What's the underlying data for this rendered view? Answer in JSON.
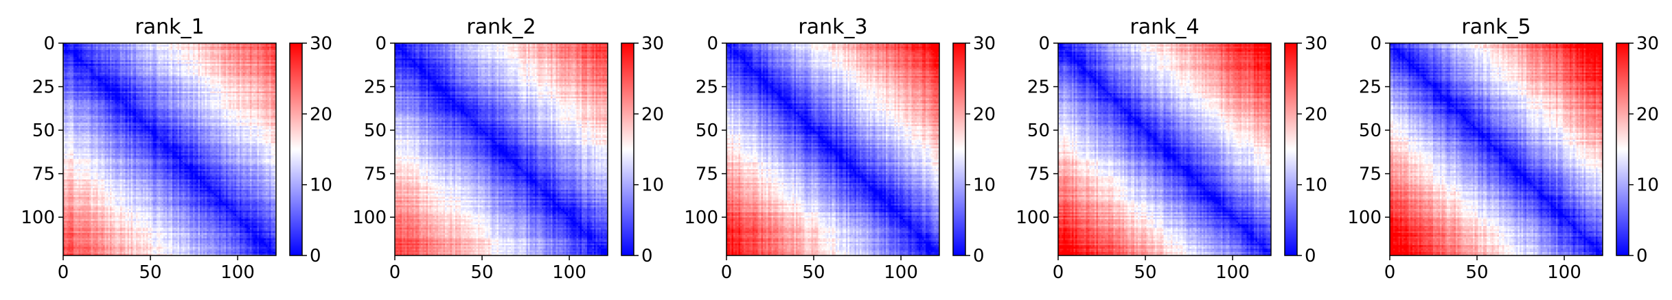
{
  "chart_data": {
    "type": "heatmap",
    "matrix_size": 123,
    "colormap": [
      "#0000ff",
      "#ffffff",
      "#ff0000"
    ],
    "color_range": [
      0,
      30
    ],
    "x_ticks": [
      0,
      50,
      100
    ],
    "y_ticks": [
      0,
      25,
      50,
      75,
      100
    ],
    "colorbar_ticks": [
      0,
      10,
      20,
      30
    ],
    "panels": [
      {
        "title": "rank_1",
        "max_distance": 26
      },
      {
        "title": "rank_2",
        "max_distance": 27
      },
      {
        "title": "rank_3",
        "max_distance": 30
      },
      {
        "title": "rank_4",
        "max_distance": 31
      },
      {
        "title": "rank_5",
        "max_distance": 32
      }
    ]
  }
}
